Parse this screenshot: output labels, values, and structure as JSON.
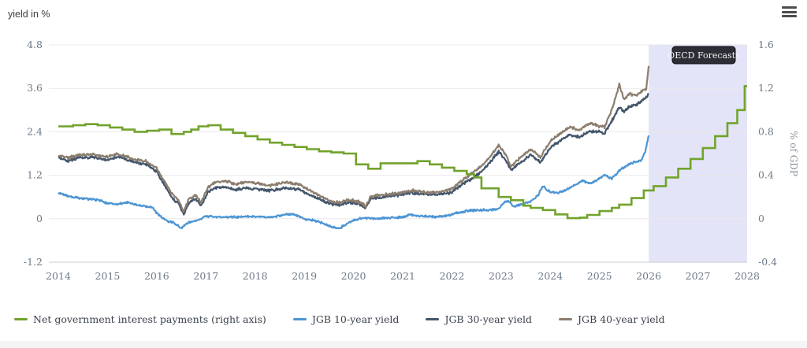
{
  "menu": {
    "icon": "hamburger-menu"
  },
  "chart_data": {
    "type": "line",
    "title": "",
    "left_axis": {
      "label": "yield in %",
      "ticks": [
        "4.8",
        "3.6",
        "2.4",
        "1.2",
        "0",
        "-1.2"
      ],
      "range": [
        -1.2,
        4.8
      ]
    },
    "right_axis": {
      "label": "% of GDP",
      "ticks": [
        "1.6",
        "1.2",
        "0.8",
        "0.4",
        "0",
        "-0.4"
      ],
      "range": [
        -0.4,
        1.6
      ]
    },
    "x_axis": {
      "ticks": [
        "2014",
        "2015",
        "2016",
        "2017",
        "2018",
        "2019",
        "2020",
        "2021",
        "2022",
        "2023",
        "2024",
        "2025",
        "2026",
        "2027",
        "2028"
      ],
      "range": [
        2014,
        2028
      ]
    },
    "grid": "horizontal",
    "legend_position": "bottom",
    "forecast_band": {
      "label": "OECD Forecasts",
      "from": 2026,
      "to": 2028,
      "color": "#e4e4f8"
    },
    "colors": {
      "grid": "#e9e9eb",
      "axis_line": "#c7ccd1",
      "tick_text": "#6e7a87",
      "tooltip_bg": "#2d2d35",
      "tooltip_border": "#101016",
      "tooltip_text": "#f4f4f4"
    },
    "series": [
      {
        "name": "Net government interest payments (right axis)",
        "axis": "right",
        "style": "step",
        "color": "#71a32b",
        "jitter": 0,
        "points": [
          [
            2014,
            0.85
          ],
          [
            2014.3,
            0.86
          ],
          [
            2014.55,
            0.87
          ],
          [
            2014.8,
            0.86
          ],
          [
            2015.05,
            0.84
          ],
          [
            2015.3,
            0.82
          ],
          [
            2015.55,
            0.8
          ],
          [
            2015.8,
            0.81
          ],
          [
            2016.05,
            0.82
          ],
          [
            2016.3,
            0.78
          ],
          [
            2016.55,
            0.8
          ],
          [
            2016.7,
            0.82
          ],
          [
            2016.85,
            0.85
          ],
          [
            2017.05,
            0.86
          ],
          [
            2017.3,
            0.82
          ],
          [
            2017.55,
            0.79
          ],
          [
            2017.8,
            0.76
          ],
          [
            2018.05,
            0.73
          ],
          [
            2018.3,
            0.7
          ],
          [
            2018.55,
            0.68
          ],
          [
            2018.8,
            0.66
          ],
          [
            2019.05,
            0.64
          ],
          [
            2019.3,
            0.62
          ],
          [
            2019.55,
            0.61
          ],
          [
            2019.8,
            0.6
          ],
          [
            2020.05,
            0.5
          ],
          [
            2020.3,
            0.46
          ],
          [
            2020.55,
            0.51
          ],
          [
            2021.3,
            0.53
          ],
          [
            2021.55,
            0.5
          ],
          [
            2021.8,
            0.47
          ],
          [
            2022.05,
            0.44
          ],
          [
            2022.3,
            0.41
          ],
          [
            2022.45,
            0.38
          ],
          [
            2022.6,
            0.28
          ],
          [
            2022.95,
            0.2
          ],
          [
            2023.2,
            0.17
          ],
          [
            2023.45,
            0.12
          ],
          [
            2023.6,
            0.1
          ],
          [
            2023.85,
            0.08
          ],
          [
            2024.1,
            0.04
          ],
          [
            2024.35,
            0.005
          ],
          [
            2024.6,
            0.01
          ],
          [
            2024.75,
            0.035
          ],
          [
            2025.0,
            0.07
          ],
          [
            2025.25,
            0.1
          ],
          [
            2025.4,
            0.13
          ],
          [
            2025.65,
            0.19
          ],
          [
            2025.9,
            0.26
          ],
          [
            2026.1,
            0.3
          ],
          [
            2026.35,
            0.38
          ],
          [
            2026.6,
            0.46
          ],
          [
            2026.85,
            0.55
          ],
          [
            2027.1,
            0.65
          ],
          [
            2027.35,
            0.76
          ],
          [
            2027.6,
            0.88
          ],
          [
            2027.8,
            1.0
          ],
          [
            2027.95,
            1.22
          ]
        ]
      },
      {
        "name": "JGB 10-year yield",
        "axis": "left",
        "style": "line",
        "color": "#4d95d3",
        "jitter": 0.035,
        "points": [
          [
            2014,
            0.72
          ],
          [
            2014.2,
            0.62
          ],
          [
            2014.5,
            0.56
          ],
          [
            2014.8,
            0.52
          ],
          [
            2015,
            0.43
          ],
          [
            2015.2,
            0.4
          ],
          [
            2015.4,
            0.45
          ],
          [
            2015.6,
            0.38
          ],
          [
            2015.9,
            0.32
          ],
          [
            2016.05,
            0.08
          ],
          [
            2016.2,
            -0.05
          ],
          [
            2016.35,
            -0.12
          ],
          [
            2016.5,
            -0.26
          ],
          [
            2016.65,
            -0.1
          ],
          [
            2016.8,
            -0.05
          ],
          [
            2017,
            0.07
          ],
          [
            2017.3,
            0.05
          ],
          [
            2017.6,
            0.05
          ],
          [
            2018,
            0.06
          ],
          [
            2018.3,
            0.04
          ],
          [
            2018.6,
            0.11
          ],
          [
            2018.8,
            0.12
          ],
          [
            2019,
            0.0
          ],
          [
            2019.3,
            -0.08
          ],
          [
            2019.55,
            -0.22
          ],
          [
            2019.7,
            -0.28
          ],
          [
            2019.9,
            -0.1
          ],
          [
            2020.05,
            -0.02
          ],
          [
            2020.2,
            0.02
          ],
          [
            2020.45,
            0.01
          ],
          [
            2020.7,
            0.03
          ],
          [
            2021,
            0.04
          ],
          [
            2021.15,
            0.11
          ],
          [
            2021.35,
            0.08
          ],
          [
            2021.6,
            0.05
          ],
          [
            2021.9,
            0.08
          ],
          [
            2022.1,
            0.16
          ],
          [
            2022.3,
            0.22
          ],
          [
            2022.55,
            0.24
          ],
          [
            2022.8,
            0.24
          ],
          [
            2022.95,
            0.27
          ],
          [
            2023.05,
            0.44
          ],
          [
            2023.15,
            0.5
          ],
          [
            2023.25,
            0.33
          ],
          [
            2023.45,
            0.42
          ],
          [
            2023.6,
            0.48
          ],
          [
            2023.75,
            0.66
          ],
          [
            2023.85,
            0.9
          ],
          [
            2023.95,
            0.78
          ],
          [
            2024.1,
            0.7
          ],
          [
            2024.3,
            0.78
          ],
          [
            2024.5,
            0.93
          ],
          [
            2024.65,
            1.05
          ],
          [
            2024.8,
            0.97
          ],
          [
            2024.95,
            1.07
          ],
          [
            2025.1,
            1.2
          ],
          [
            2025.25,
            1.1
          ],
          [
            2025.4,
            1.32
          ],
          [
            2025.55,
            1.47
          ],
          [
            2025.7,
            1.56
          ],
          [
            2025.85,
            1.62
          ],
          [
            2025.93,
            1.85
          ],
          [
            2026,
            2.3
          ]
        ]
      },
      {
        "name": "JGB 30-year yield",
        "axis": "left",
        "style": "line",
        "color": "#44566c",
        "jitter": 0.045,
        "points": [
          [
            2014,
            1.68
          ],
          [
            2014.2,
            1.6
          ],
          [
            2014.4,
            1.68
          ],
          [
            2014.7,
            1.7
          ],
          [
            2015,
            1.62
          ],
          [
            2015.2,
            1.72
          ],
          [
            2015.5,
            1.58
          ],
          [
            2015.8,
            1.5
          ],
          [
            2016,
            1.3
          ],
          [
            2016.15,
            0.95
          ],
          [
            2016.3,
            0.6
          ],
          [
            2016.45,
            0.4
          ],
          [
            2016.55,
            0.1
          ],
          [
            2016.65,
            0.45
          ],
          [
            2016.8,
            0.55
          ],
          [
            2016.9,
            0.35
          ],
          [
            2017.05,
            0.75
          ],
          [
            2017.2,
            0.85
          ],
          [
            2017.4,
            0.88
          ],
          [
            2017.6,
            0.8
          ],
          [
            2017.8,
            0.85
          ],
          [
            2018,
            0.82
          ],
          [
            2018.3,
            0.78
          ],
          [
            2018.6,
            0.85
          ],
          [
            2018.9,
            0.8
          ],
          [
            2019.2,
            0.6
          ],
          [
            2019.5,
            0.42
          ],
          [
            2019.7,
            0.38
          ],
          [
            2019.9,
            0.45
          ],
          [
            2020.1,
            0.42
          ],
          [
            2020.25,
            0.3
          ],
          [
            2020.35,
            0.55
          ],
          [
            2020.6,
            0.6
          ],
          [
            2020.9,
            0.65
          ],
          [
            2021.2,
            0.72
          ],
          [
            2021.5,
            0.66
          ],
          [
            2021.8,
            0.68
          ],
          [
            2022,
            0.72
          ],
          [
            2022.2,
            0.95
          ],
          [
            2022.4,
            1.1
          ],
          [
            2022.6,
            1.3
          ],
          [
            2022.8,
            1.6
          ],
          [
            2022.95,
            1.85
          ],
          [
            2023.1,
            1.6
          ],
          [
            2023.2,
            1.35
          ],
          [
            2023.4,
            1.55
          ],
          [
            2023.6,
            1.77
          ],
          [
            2023.8,
            1.55
          ],
          [
            2024,
            1.96
          ],
          [
            2024.2,
            2.15
          ],
          [
            2024.4,
            2.31
          ],
          [
            2024.6,
            2.25
          ],
          [
            2024.8,
            2.42
          ],
          [
            2025,
            2.4
          ],
          [
            2025.1,
            2.35
          ],
          [
            2025.25,
            2.7
          ],
          [
            2025.4,
            3.08
          ],
          [
            2025.5,
            2.95
          ],
          [
            2025.6,
            3.1
          ],
          [
            2025.75,
            3.15
          ],
          [
            2025.85,
            3.25
          ],
          [
            2025.95,
            3.35
          ],
          [
            2026,
            3.45
          ]
        ]
      },
      {
        "name": "JGB 40-year yield",
        "axis": "left",
        "style": "line",
        "color": "#8b7e6e",
        "jitter": 0.045,
        "points": [
          [
            2014,
            1.75
          ],
          [
            2014.2,
            1.68
          ],
          [
            2014.4,
            1.76
          ],
          [
            2014.7,
            1.78
          ],
          [
            2015,
            1.7
          ],
          [
            2015.2,
            1.8
          ],
          [
            2015.5,
            1.65
          ],
          [
            2015.8,
            1.58
          ],
          [
            2016,
            1.38
          ],
          [
            2016.15,
            1.05
          ],
          [
            2016.3,
            0.7
          ],
          [
            2016.45,
            0.5
          ],
          [
            2016.55,
            0.18
          ],
          [
            2016.65,
            0.55
          ],
          [
            2016.8,
            0.65
          ],
          [
            2016.9,
            0.45
          ],
          [
            2017.05,
            0.88
          ],
          [
            2017.2,
            1.0
          ],
          [
            2017.4,
            1.05
          ],
          [
            2017.6,
            0.95
          ],
          [
            2017.8,
            1.02
          ],
          [
            2018,
            0.98
          ],
          [
            2018.3,
            0.92
          ],
          [
            2018.6,
            1.0
          ],
          [
            2018.9,
            0.95
          ],
          [
            2019.2,
            0.72
          ],
          [
            2019.5,
            0.5
          ],
          [
            2019.7,
            0.44
          ],
          [
            2019.9,
            0.52
          ],
          [
            2020.1,
            0.48
          ],
          [
            2020.25,
            0.35
          ],
          [
            2020.35,
            0.62
          ],
          [
            2020.6,
            0.66
          ],
          [
            2020.9,
            0.7
          ],
          [
            2021.2,
            0.78
          ],
          [
            2021.5,
            0.72
          ],
          [
            2021.8,
            0.75
          ],
          [
            2022,
            0.83
          ],
          [
            2022.2,
            1.05
          ],
          [
            2022.4,
            1.25
          ],
          [
            2022.6,
            1.45
          ],
          [
            2022.8,
            1.75
          ],
          [
            2022.95,
            2.03
          ],
          [
            2023.1,
            1.75
          ],
          [
            2023.2,
            1.44
          ],
          [
            2023.4,
            1.7
          ],
          [
            2023.6,
            1.92
          ],
          [
            2023.8,
            1.7
          ],
          [
            2024,
            2.14
          ],
          [
            2024.2,
            2.35
          ],
          [
            2024.4,
            2.53
          ],
          [
            2024.6,
            2.45
          ],
          [
            2024.8,
            2.64
          ],
          [
            2025,
            2.55
          ],
          [
            2025.1,
            2.53
          ],
          [
            2025.25,
            3.0
          ],
          [
            2025.4,
            3.7
          ],
          [
            2025.5,
            3.3
          ],
          [
            2025.6,
            3.45
          ],
          [
            2025.75,
            3.4
          ],
          [
            2025.85,
            3.5
          ],
          [
            2025.95,
            3.6
          ],
          [
            2026,
            4.22
          ]
        ]
      }
    ]
  }
}
